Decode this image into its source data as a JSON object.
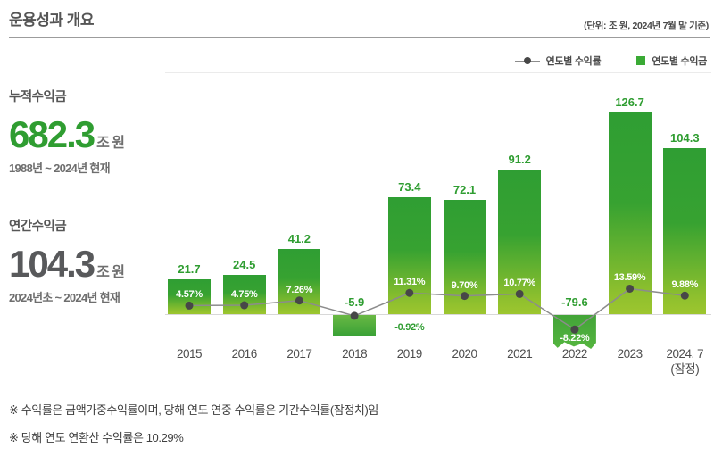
{
  "header": {
    "title": "운용성과 개요",
    "unit_note": "(단위: 조 원, 2024년 7월 말 기준)"
  },
  "legend": {
    "line_label": "연도별 수익률",
    "bar_label": "연도별 수익금"
  },
  "stats": {
    "cumulative": {
      "label": "누적수익금",
      "value": "682.3",
      "unit": "조 원",
      "period": "1988년 ~ 2024년 현재",
      "value_color": "#2f9d31"
    },
    "annual": {
      "label": "연간수익금",
      "value": "104.3",
      "unit": "조 원",
      "period": "2024년초 ~ 2024년 현재",
      "value_color": "#58595b"
    }
  },
  "chart_data": {
    "type": "bar+line",
    "categories": [
      "2015",
      "2016",
      "2017",
      "2018",
      "2019",
      "2020",
      "2021",
      "2022",
      "2023",
      "2024. 7 (잠정)"
    ],
    "series": [
      {
        "name": "연도별 수익금",
        "type": "bar",
        "unit": "조 원",
        "values": [
          21.7,
          24.5,
          41.2,
          -5.9,
          73.4,
          72.1,
          91.2,
          -79.6,
          126.7,
          104.3
        ]
      },
      {
        "name": "연도별 수익률",
        "type": "line",
        "unit": "%",
        "values": [
          4.57,
          4.75,
          7.26,
          -0.92,
          11.31,
          9.7,
          10.77,
          -8.22,
          13.59,
          9.88
        ]
      }
    ],
    "points": [
      {
        "year": "2015",
        "amount": 21.7,
        "amount_label": "21.7",
        "rate": 4.57,
        "rate_label": "4.57%",
        "rate_label_pos": "above_dot"
      },
      {
        "year": "2016",
        "amount": 24.5,
        "amount_label": "24.5",
        "rate": 4.75,
        "rate_label": "4.75%",
        "rate_label_pos": "above_dot"
      },
      {
        "year": "2017",
        "amount": 41.2,
        "amount_label": "41.2",
        "rate": 7.26,
        "rate_label": "7.26%",
        "rate_label_pos": "above_dot"
      },
      {
        "year": "2018",
        "amount": -5.9,
        "amount_label": "-5.9",
        "rate": -0.92,
        "rate_label": "-0.92%",
        "rate_label_pos": "below_right"
      },
      {
        "year": "2019",
        "amount": 73.4,
        "amount_label": "73.4",
        "rate": 11.31,
        "rate_label": "11.31%",
        "rate_label_pos": "above_dot"
      },
      {
        "year": "2020",
        "amount": 72.1,
        "amount_label": "72.1",
        "rate": 9.7,
        "rate_label": "9.70%",
        "rate_label_pos": "above_dot"
      },
      {
        "year": "2021",
        "amount": 91.2,
        "amount_label": "91.2",
        "rate": 10.77,
        "rate_label": "10.77%",
        "rate_label_pos": "above_dot"
      },
      {
        "year": "2022",
        "amount": -79.6,
        "amount_label": "-79.6",
        "rate": -8.22,
        "rate_label": "-8.22%",
        "rate_label_pos": "inside_below",
        "truncated": true
      },
      {
        "year": "2023",
        "amount": 126.7,
        "amount_label": "126.7",
        "rate": 13.59,
        "rate_label": "13.59%",
        "rate_label_pos": "above_dot"
      },
      {
        "year": "2024. 7",
        "year_sub": "(잠정)",
        "amount": 104.3,
        "amount_label": "104.3",
        "rate": 9.88,
        "rate_label": "9.88%",
        "rate_label_pos": "above_dot"
      }
    ],
    "colors": {
      "bar_gradient_top": "#2f9e33",
      "bar_gradient_bottom": "#9dc62f",
      "accent_green": "#2f9d31",
      "line": "#8c8c8c",
      "dot": "#474747",
      "axis": "#d8d8d8"
    },
    "layout_hints": {
      "legend_position": "top-right",
      "grid": false,
      "y_axis_shown": false,
      "negative_bars_truncated": [
        "2022"
      ]
    }
  },
  "notes": [
    "※ 수익률은 금액가중수익률이며, 당해 연도 연중 수익률은 기간수익률(잠정치)임",
    "※ 당해 연도 연환산 수익률은 10.29%"
  ]
}
